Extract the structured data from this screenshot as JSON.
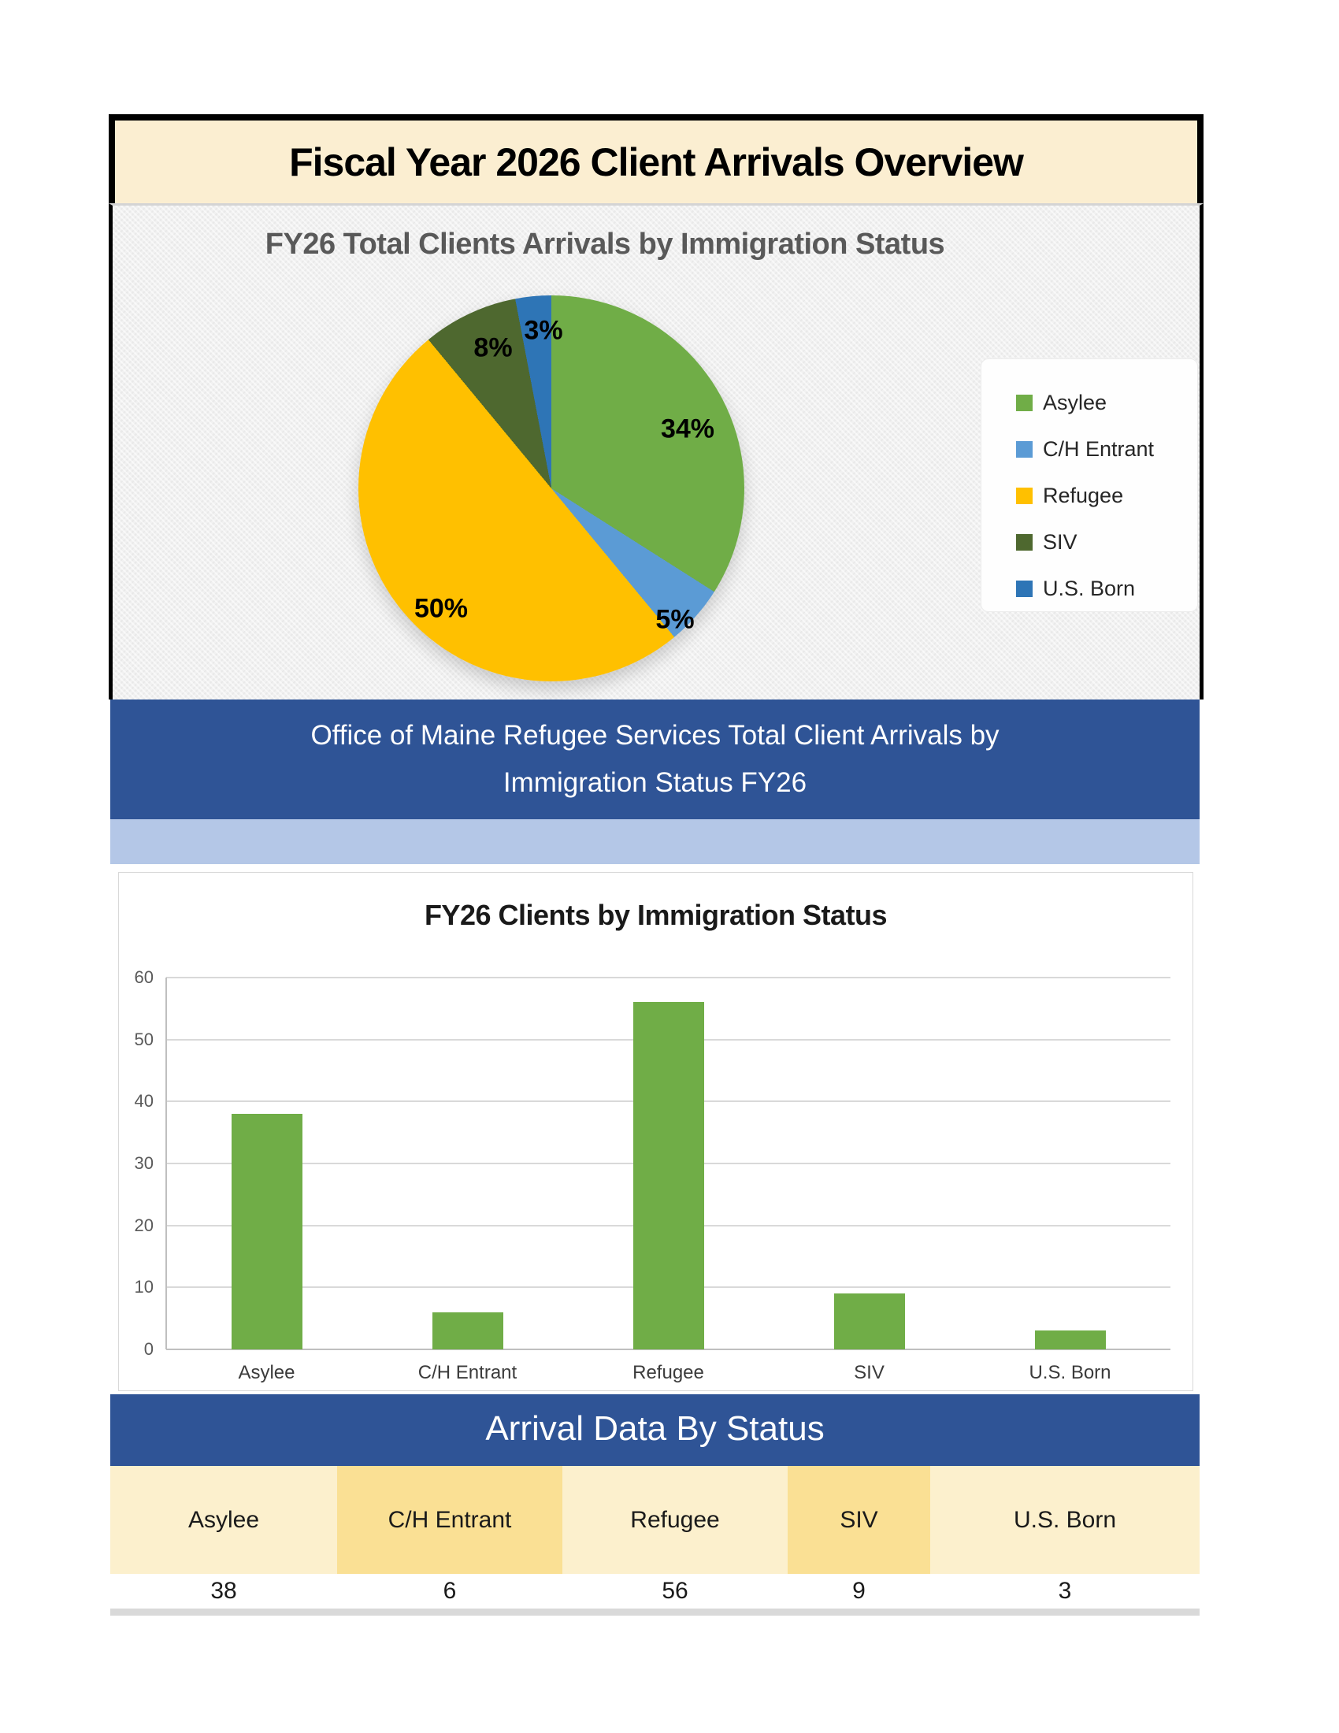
{
  "page_title": "Fiscal Year 2026 Client Arrivals Overview",
  "pie_chart": {
    "title": "FY26 Total Clients Arrivals by Immigration Status",
    "legend_items": [
      "Asylee",
      "C/H Entrant",
      "Refugee",
      "SIV",
      "U.S. Born"
    ]
  },
  "banner1": {
    "text": "Office of Maine Refugee Services Total Client Arrivals by Immigration Status FY26"
  },
  "bar_chart": {
    "title": "FY26 Clients by Immigration Status"
  },
  "table": {
    "banner": "Arrival Data By Status",
    "columns": [
      "Asylee",
      "C/H Entrant",
      "Refugee",
      "SIV",
      "U.S. Born"
    ],
    "values": [
      "38",
      "6",
      "56",
      "9",
      "3"
    ]
  },
  "chart_data": [
    {
      "type": "pie",
      "title": "FY26 Total Clients Arrivals by Immigration Status",
      "categories": [
        "Asylee",
        "C/H Entrant",
        "Refugee",
        "SIV",
        "U.S. Born"
      ],
      "values_percent": [
        34,
        5,
        50,
        8,
        3
      ],
      "data_labels": [
        "34%",
        "5%",
        "50%",
        "8%",
        "3%"
      ],
      "colors": [
        "#70AD47",
        "#5B9BD5",
        "#FFC000",
        "#4E682F",
        "#2E75B6"
      ],
      "start_angle_deg": 0,
      "direction": "clockwise",
      "legend_position": "right"
    },
    {
      "type": "bar",
      "title": "FY26 Clients by Immigration Status",
      "categories": [
        "Asylee",
        "C/H Entrant",
        "Refugee",
        "SIV",
        "U.S. Born"
      ],
      "values": [
        38,
        6,
        56,
        9,
        3
      ],
      "bar_color": "#70AD47",
      "ylim": [
        0,
        60
      ],
      "yticks": [
        0,
        10,
        20,
        30,
        40,
        50,
        60
      ],
      "grid": true,
      "legend": "none"
    }
  ],
  "colors": {
    "title_banner_bg": "#FBEED1",
    "banner_blue": "#2F5496",
    "light_blue_band": "#B4C7E7",
    "table_header_light": "#FCF0CD",
    "table_header_gold": "#FAE094",
    "bar_green": "#70AD47",
    "strip_gray": "#D9D9D9"
  }
}
